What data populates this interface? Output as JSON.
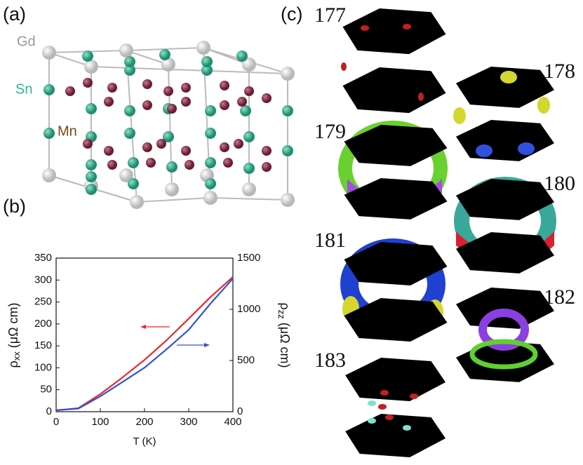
{
  "panels": {
    "a": {
      "label": "(a)",
      "atoms": [
        "Gd",
        "Sn",
        "Mn"
      ]
    },
    "b": {
      "label": "(b)"
    },
    "c": {
      "label": "(c)",
      "bands": [
        "177",
        "178",
        "179",
        "180",
        "181",
        "182",
        "183"
      ]
    }
  },
  "chart_data": {
    "type": "line",
    "x_label": "T (K)",
    "y_label": {
      "symbol": "ρ",
      "subscript": "xx",
      "unit": " (μΩ cm)"
    },
    "y2_label": {
      "symbol": "ρ",
      "subscript": "zz",
      "unit": " (μΩ cm)"
    },
    "x": [
      0,
      50,
      100,
      150,
      200,
      250,
      300,
      350,
      400
    ],
    "series": [
      {
        "name": "ρxx",
        "color": "#e8282a",
        "values": [
          3,
          8,
          40,
          78,
          118,
          163,
          212,
          262,
          307
        ]
      },
      {
        "name": "ρzz",
        "color": "#3052d8",
        "axis": "y2",
        "values": [
          15,
          30,
          150,
          290,
          430,
          610,
          800,
          1060,
          1300
        ]
      }
    ],
    "xlim": [
      0,
      400
    ],
    "xticks": [
      0,
      100,
      200,
      300,
      400
    ],
    "ylim": [
      0,
      350
    ],
    "yticks": [
      0,
      50,
      100,
      150,
      200,
      250,
      300,
      350
    ],
    "y2lim": [
      0,
      1500
    ],
    "y2ticks": [
      0,
      500,
      1000,
      1500
    ]
  }
}
